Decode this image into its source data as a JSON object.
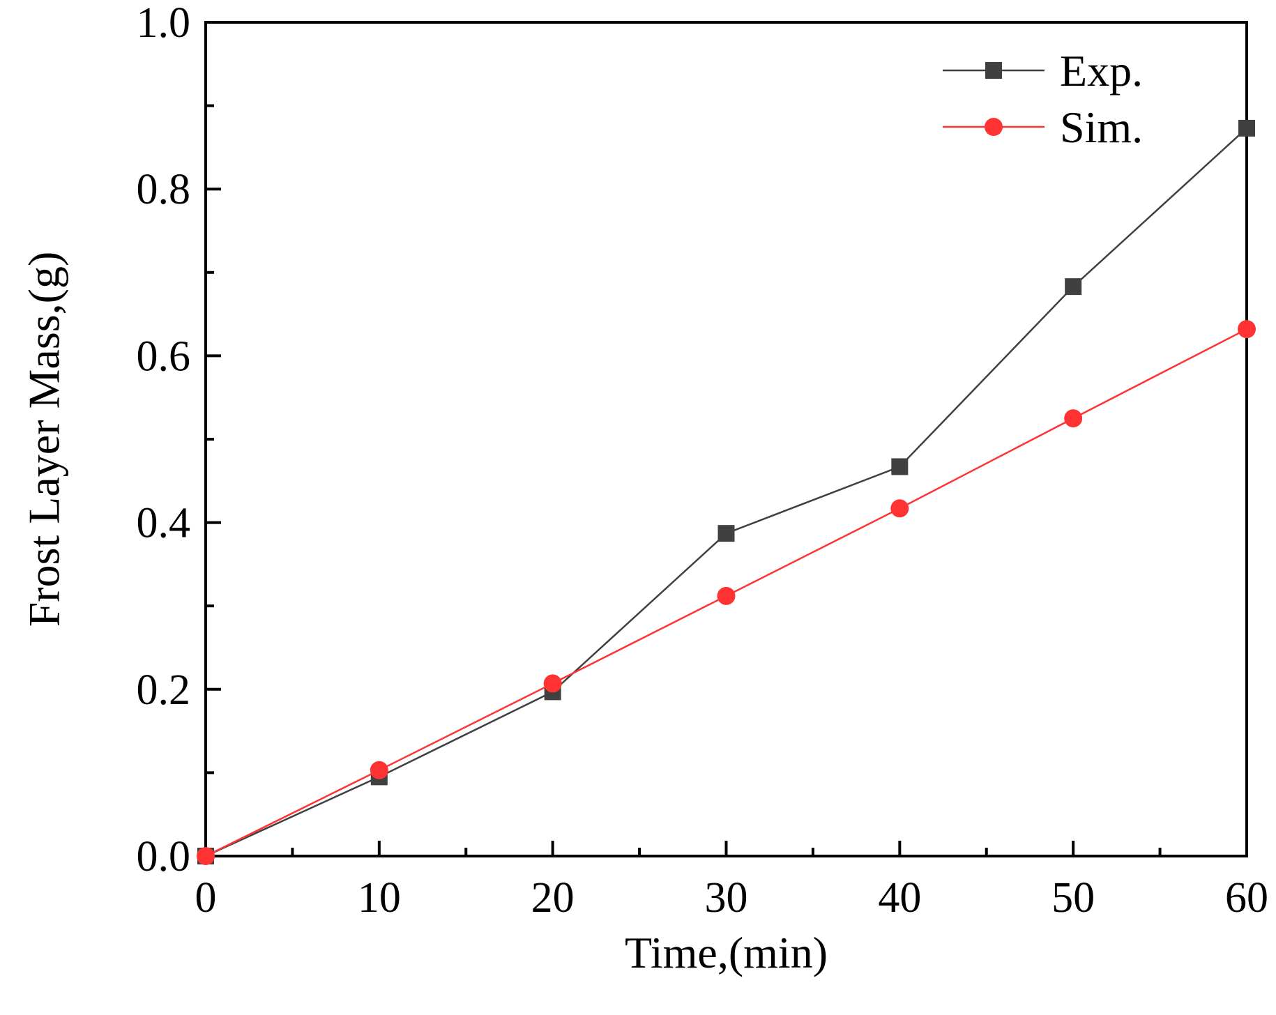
{
  "chart_data": {
    "type": "line",
    "xlabel": "Time,(min)",
    "ylabel": "Frost Layer Mass,(g)",
    "xlim": [
      0,
      60
    ],
    "ylim": [
      0,
      1.0
    ],
    "x_ticks": [
      "0",
      "10",
      "20",
      "30",
      "40",
      "50",
      "60"
    ],
    "y_ticks": [
      "0.0",
      "0.2",
      "0.4",
      "0.6",
      "0.8",
      "1.0"
    ],
    "legend_position": "top-right",
    "grid": false,
    "x": [
      0,
      10,
      20,
      30,
      40,
      50,
      60
    ],
    "series": [
      {
        "name": "Exp.",
        "marker": "square",
        "color": "#404040",
        "values": [
          0.0,
          0.095,
          0.197,
          0.387,
          0.467,
          0.683,
          0.873
        ]
      },
      {
        "name": "Sim.",
        "marker": "circle",
        "color": "#ff3333",
        "values": [
          0.0,
          0.103,
          0.207,
          0.312,
          0.417,
          0.525,
          0.632
        ]
      }
    ]
  }
}
